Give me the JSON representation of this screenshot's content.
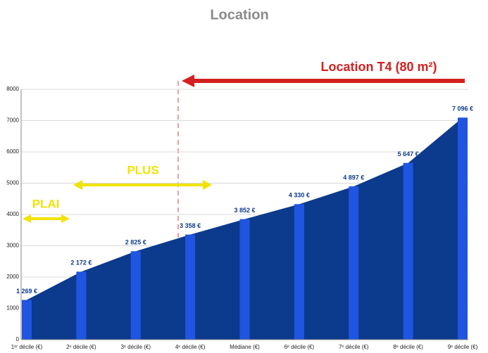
{
  "chart_data": {
    "type": "bar_area",
    "title": "Location",
    "annotations": {
      "location": "Location T4 (80 m²)",
      "plus": "PLUS",
      "plai": "PLAI"
    },
    "categories": [
      "1ᵉʳ décile (€)",
      "2ᵉ décile (€)",
      "3ᵉ décile  (€)",
      "4ᵉ décile (€)",
      "Médiane (€)",
      "6ᵉ décile (€)",
      "7ᵉ décile (€)",
      "8ᵉ décile (€)",
      "9ᵉ décile (€)"
    ],
    "values": [
      1269,
      2172,
      2825,
      3358,
      3852,
      4330,
      4897,
      5647,
      7096
    ],
    "value_labels": [
      "1 269 €",
      "2 172 €",
      "2 825 €",
      "3 358 €",
      "3 852 €",
      "4 330 €",
      "4 897 €",
      "5 647 €",
      "7 096 €"
    ],
    "color": "#1f55e0",
    "area_color": "#0c3a8c",
    "ylim": [
      0,
      8000
    ],
    "yticks": [
      0,
      1000,
      2000,
      3000,
      4000,
      5000,
      6000,
      7000,
      8000
    ],
    "grid": true
  }
}
